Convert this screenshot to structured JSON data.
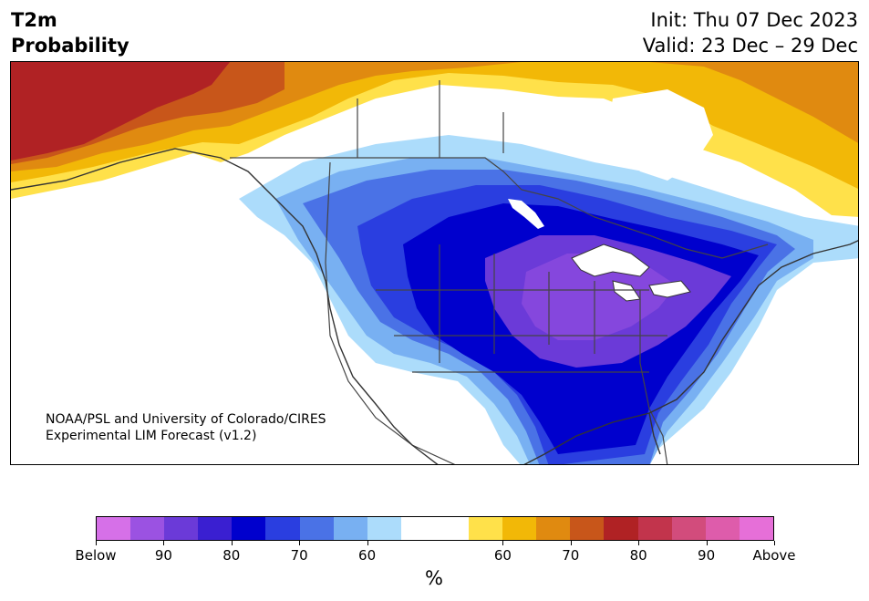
{
  "title": {
    "left_line1": "T2m",
    "left_line2": "Probability",
    "init": "Init: Thu 07 Dec 2023",
    "valid": "Valid: 23 Dec – 29 Dec"
  },
  "credit": {
    "line1": "NOAA/PSL and University of Colorado/CIRES",
    "line2": "Experimental LIM Forecast (v1.2)"
  },
  "colorbar": {
    "unit": "%",
    "labels": [
      "Below",
      "90",
      "80",
      "70",
      "60",
      "60",
      "70",
      "80",
      "90",
      "Above"
    ],
    "colors": [
      "#d670e8",
      "#9b52e2",
      "#6b3ad8",
      "#3a1fd1",
      "#0000cd",
      "#2a3ee0",
      "#4a72e6",
      "#78b0f2",
      "#acdcfb",
      "#ffffff",
      "#ffffff",
      "#ffe14a",
      "#f2b807",
      "#e08a10",
      "#c8561a",
      "#b02224",
      "#c2344c",
      "#d24c7c",
      "#de5cab",
      "#e66fd8"
    ]
  },
  "map": {
    "region": "North America",
    "anomaly_colors": {
      "cold_strong": "#6b3ad8",
      "cold_core": "#0000cd",
      "cold_mid": "#2a3ee0",
      "cold_light": "#4a72e6",
      "cold_pale": "#78b0f2",
      "cold_faint": "#acdcfb",
      "warm_faint": "#ffe14a",
      "warm_light": "#f2b807",
      "warm_mid": "#e08a10",
      "warm_strong": "#c8561a",
      "warm_core": "#b02224"
    }
  }
}
